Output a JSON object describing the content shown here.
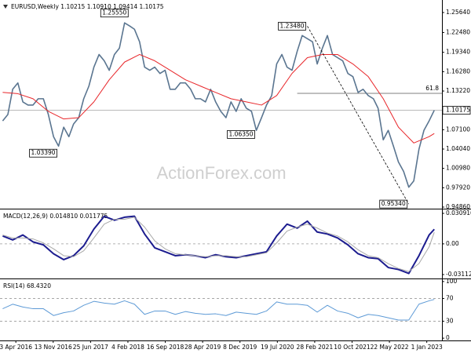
{
  "chart_data": [
    {
      "type": "line",
      "title": "EURUSD,Weekly  1.10215 1.10910 1.09414 1.10175",
      "watermark": "ActionForex.com",
      "xlim": [
        "2015-12-30",
        "2023-04-02"
      ],
      "ylim": [
        0.9461,
        1.2762
      ],
      "yticks": [
        {
          "value": 1.2564,
          "label": "1.25640"
        },
        {
          "value": 1.2248,
          "label": "1.22480"
        },
        {
          "value": 1.1934,
          "label": "1.19340"
        },
        {
          "value": 1.1628,
          "label": "1.16280"
        },
        {
          "value": 1.1322,
          "label": "1.13220"
        },
        {
          "value": 1.071,
          "label": "1.07100"
        },
        {
          "value": 1.0404,
          "label": "1.04040"
        },
        {
          "value": 1.0098,
          "label": "1.00980"
        },
        {
          "value": 0.9792,
          "label": "0.97920"
        },
        {
          "value": 0.9486,
          "label": "0.94860"
        }
      ],
      "last_price": {
        "value": 1.10175,
        "label": "1.10175"
      },
      "fib": {
        "label": "61.8",
        "value": 1.1285,
        "x": "2020-11"
      },
      "annotations": [
        {
          "x": "2016-12",
          "value": 1.0339,
          "label": "1.03390"
        },
        {
          "x": "2018-02",
          "value": 1.2555,
          "label": "1.25550"
        },
        {
          "x": "2020-03",
          "value": 1.0635,
          "label": "1.06350"
        },
        {
          "x": "2021-01",
          "value": 1.2348,
          "label": "1.23480"
        },
        {
          "x": "2022-09",
          "value": 0.9534,
          "label": "0.95340"
        }
      ],
      "x": [
        "2016-01",
        "2016-02",
        "2016-03",
        "2016-04",
        "2016-05",
        "2016-06",
        "2016-07",
        "2016-08",
        "2016-09",
        "2016-10",
        "2016-11",
        "2016-12",
        "2017-01",
        "2017-02",
        "2017-03",
        "2017-04",
        "2017-05",
        "2017-06",
        "2017-07",
        "2017-08",
        "2017-09",
        "2017-10",
        "2017-11",
        "2017-12",
        "2018-01",
        "2018-02",
        "2018-03",
        "2018-04",
        "2018-05",
        "2018-06",
        "2018-07",
        "2018-08",
        "2018-09",
        "2018-10",
        "2018-11",
        "2018-12",
        "2019-01",
        "2019-02",
        "2019-03",
        "2019-04",
        "2019-05",
        "2019-06",
        "2019-07",
        "2019-08",
        "2019-09",
        "2019-10",
        "2019-11",
        "2019-12",
        "2020-01",
        "2020-02",
        "2020-03",
        "2020-04",
        "2020-05",
        "2020-06",
        "2020-07",
        "2020-08",
        "2020-09",
        "2020-10",
        "2020-11",
        "2020-12",
        "2021-01",
        "2021-02",
        "2021-03",
        "2021-04",
        "2021-05",
        "2021-06",
        "2021-07",
        "2021-08",
        "2021-09",
        "2021-10",
        "2021-11",
        "2021-12",
        "2022-01",
        "2022-02",
        "2022-03",
        "2022-04",
        "2022-05",
        "2022-06",
        "2022-07",
        "2022-08",
        "2022-09",
        "2022-10",
        "2022-11",
        "2022-12",
        "2023-01",
        "2023-02"
      ],
      "series": [
        {
          "color": "#5a7590",
          "values": [
            1.085,
            1.095,
            1.135,
            1.145,
            1.115,
            1.11,
            1.11,
            1.12,
            1.12,
            1.095,
            1.06,
            1.045,
            1.075,
            1.06,
            1.08,
            1.09,
            1.12,
            1.14,
            1.17,
            1.19,
            1.18,
            1.165,
            1.19,
            1.2,
            1.24,
            1.235,
            1.23,
            1.21,
            1.17,
            1.165,
            1.17,
            1.16,
            1.165,
            1.135,
            1.135,
            1.145,
            1.145,
            1.135,
            1.12,
            1.12,
            1.115,
            1.135,
            1.115,
            1.1,
            1.09,
            1.115,
            1.1,
            1.12,
            1.105,
            1.1,
            1.07,
            1.09,
            1.11,
            1.125,
            1.175,
            1.19,
            1.17,
            1.165,
            1.195,
            1.22,
            1.215,
            1.21,
            1.175,
            1.2,
            1.22,
            1.19,
            1.185,
            1.18,
            1.16,
            1.155,
            1.13,
            1.135,
            1.125,
            1.12,
            1.105,
            1.055,
            1.07,
            1.045,
            1.02,
            1.005,
            0.98,
            0.99,
            1.04,
            1.07,
            1.085,
            1.10175
          ]
        },
        {
          "color": "#e8262a",
          "x": [
            "2016-01",
            "2016-04",
            "2016-07",
            "2016-10",
            "2017-01",
            "2017-04",
            "2017-07",
            "2017-10",
            "2018-01",
            "2018-04",
            "2018-07",
            "2018-10",
            "2019-01",
            "2019-04",
            "2019-07",
            "2019-10",
            "2020-01",
            "2020-04",
            "2020-07",
            "2020-10",
            "2021-01",
            "2021-04",
            "2021-07",
            "2021-10",
            "2022-01",
            "2022-04",
            "2022-07",
            "2022-10",
            "2023-01",
            "2023-02"
          ],
          "values": [
            1.13,
            1.128,
            1.12,
            1.1,
            1.088,
            1.09,
            1.115,
            1.15,
            1.178,
            1.19,
            1.18,
            1.165,
            1.15,
            1.14,
            1.13,
            1.12,
            1.115,
            1.11,
            1.125,
            1.16,
            1.185,
            1.19,
            1.19,
            1.175,
            1.155,
            1.12,
            1.075,
            1.05,
            1.06,
            1.065
          ]
        }
      ]
    },
    {
      "type": "line",
      "title": "MACD(12,26,9) 0.014810 0.011775",
      "xlim": [
        "2015-12-30",
        "2023-04-02"
      ],
      "ylim": [
        -0.0351,
        0.0349
      ],
      "yticks": [
        0.030916,
        {
          "value": 0,
          "label": "0.00"
        },
        -0.031124
      ],
      "levels": [
        0
      ],
      "x": [
        "2016-01",
        "2016-03",
        "2016-05",
        "2016-07",
        "2016-09",
        "2016-11",
        "2017-01",
        "2017-03",
        "2017-05",
        "2017-07",
        "2017-09",
        "2017-11",
        "2018-01",
        "2018-03",
        "2018-05",
        "2018-07",
        "2018-09",
        "2018-11",
        "2019-01",
        "2019-03",
        "2019-05",
        "2019-07",
        "2019-09",
        "2019-11",
        "2020-01",
        "2020-03",
        "2020-05",
        "2020-07",
        "2020-09",
        "2020-11",
        "2021-01",
        "2021-03",
        "2021-05",
        "2021-07",
        "2021-09",
        "2021-11",
        "2022-01",
        "2022-03",
        "2022-05",
        "2022-07",
        "2022-09",
        "2022-11",
        "2023-01",
        "2023-02"
      ],
      "series": [
        {
          "color": "#1c1c8f",
          "values": [
            0.008,
            0.004,
            0.009,
            0.002,
            -0.001,
            -0.01,
            -0.016,
            -0.012,
            -0.002,
            0.015,
            0.028,
            0.024,
            0.027,
            0.028,
            0.01,
            -0.004,
            -0.008,
            -0.012,
            -0.011,
            -0.012,
            -0.014,
            -0.011,
            -0.013,
            -0.014,
            -0.012,
            -0.01,
            -0.008,
            0.008,
            0.02,
            0.016,
            0.023,
            0.012,
            0.01,
            0.006,
            -0.001,
            -0.01,
            -0.014,
            -0.015,
            -0.024,
            -0.026,
            -0.03,
            -0.012,
            0.009,
            0.01481
          ]
        },
        {
          "color": "#a8a8a8",
          "values": [
            0.009,
            0.006,
            0.006,
            0.005,
            0.001,
            -0.005,
            -0.012,
            -0.013,
            -0.007,
            0.006,
            0.02,
            0.025,
            0.025,
            0.027,
            0.017,
            0.003,
            -0.005,
            -0.01,
            -0.011,
            -0.012,
            -0.013,
            -0.012,
            -0.012,
            -0.013,
            -0.013,
            -0.011,
            -0.009,
            0.001,
            0.013,
            0.017,
            0.02,
            0.016,
            0.011,
            0.008,
            0.002,
            -0.006,
            -0.012,
            -0.014,
            -0.02,
            -0.025,
            -0.028,
            -0.02,
            -0.003,
            0.011775
          ]
        }
      ]
    },
    {
      "type": "line",
      "title": "RSI(14) 68.4320",
      "xlim": [
        "2015-12-30",
        "2023-04-02"
      ],
      "ylim": [
        -4,
        104
      ],
      "yticks": [
        100,
        70,
        30,
        0
      ],
      "levels": [
        70,
        30
      ],
      "xticks": [
        {
          "value": "2016-04-03",
          "label": "3 Apr 2016"
        },
        {
          "value": "2016-11-13",
          "label": "13 Nov 2016"
        },
        {
          "value": "2017-06-25",
          "label": "25 Jun 2017"
        },
        {
          "value": "2018-02-04",
          "label": "4 Feb 2018"
        },
        {
          "value": "2018-09-16",
          "label": "16 Sep 2018"
        },
        {
          "value": "2019-04-28",
          "label": "28 Apr 2019"
        },
        {
          "value": "2019-12-08",
          "label": "8 Dec 2019"
        },
        {
          "value": "2020-07-19",
          "label": "19 Jul 2020"
        },
        {
          "value": "2021-02-28",
          "label": "28 Feb 2021"
        },
        {
          "value": "2021-10-10",
          "label": "10 Oct 2021"
        },
        {
          "value": "2022-05-22",
          "label": "22 May 2022"
        },
        {
          "value": "2023-01-01",
          "label": "1 Jan 2023"
        }
      ],
      "x": [
        "2016-01",
        "2016-03",
        "2016-05",
        "2016-07",
        "2016-09",
        "2016-11",
        "2017-01",
        "2017-03",
        "2017-05",
        "2017-07",
        "2017-09",
        "2017-11",
        "2018-01",
        "2018-03",
        "2018-05",
        "2018-07",
        "2018-09",
        "2018-11",
        "2019-01",
        "2019-03",
        "2019-05",
        "2019-07",
        "2019-09",
        "2019-11",
        "2020-01",
        "2020-03",
        "2020-05",
        "2020-07",
        "2020-09",
        "2020-11",
        "2021-01",
        "2021-03",
        "2021-05",
        "2021-07",
        "2021-09",
        "2021-11",
        "2022-01",
        "2022-03",
        "2022-05",
        "2022-07",
        "2022-09",
        "2022-11",
        "2023-01",
        "2023-02"
      ],
      "series": [
        {
          "color": "#5d9ad6",
          "values": [
            52,
            60,
            55,
            52,
            52,
            40,
            45,
            48,
            58,
            65,
            62,
            60,
            66,
            60,
            42,
            48,
            48,
            42,
            47,
            44,
            42,
            43,
            40,
            46,
            44,
            42,
            48,
            64,
            60,
            60,
            58,
            46,
            58,
            48,
            44,
            36,
            42,
            40,
            36,
            32,
            32,
            60,
            66,
            68.432
          ]
        }
      ]
    }
  ]
}
